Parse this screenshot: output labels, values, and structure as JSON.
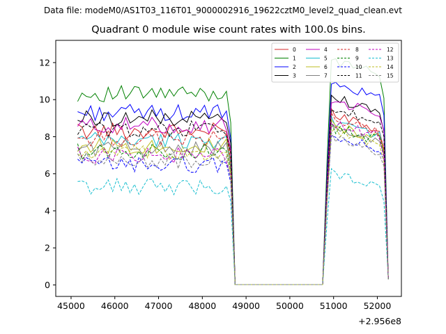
{
  "header": {
    "suptitle": "Data file: modeM0/AS1T03_116T01_9000002916_19622cztM0_level2_quad_clean.evt"
  },
  "chart_data": {
    "type": "line",
    "title": "Quadrant 0 module wise count rates with 100.0s bins.",
    "xlabel": "",
    "ylabel": "",
    "offset_text": "+2.956e8",
    "xlim": [
      44650,
      52550
    ],
    "ylim": [
      -0.62,
      13.2
    ],
    "xticks": [
      45000,
      46000,
      47000,
      48000,
      49000,
      50000,
      51000,
      52000
    ],
    "xtick_labels": [
      "45000",
      "46000",
      "47000",
      "48000",
      "49000",
      "50000",
      "51000",
      "52000"
    ],
    "yticks": [
      0,
      2,
      4,
      6,
      8,
      10,
      12
    ],
    "ytick_labels": [
      "0",
      "2",
      "4",
      "6",
      "8",
      "10",
      "12"
    ],
    "grid": false,
    "legend_position": "top-right",
    "segments": [
      {
        "start": 45150,
        "end": 48650,
        "step": 100
      },
      {
        "start": 48750,
        "end": 50750,
        "step": 100
      },
      {
        "start": 50850,
        "end": 52250,
        "step": 100
      }
    ],
    "series": [
      {
        "name": "0",
        "color": "#d62728",
        "dash": "solid",
        "level": 8.3,
        "level_b": 9.3,
        "low": 0.3
      },
      {
        "name": "1",
        "color": "#008000",
        "dash": "solid",
        "level": 10.3,
        "level_b": 12.2,
        "low": 0.3
      },
      {
        "name": "2",
        "color": "#0000ff",
        "dash": "solid",
        "level": 9.3,
        "level_b": 10.9,
        "low": 0.3
      },
      {
        "name": "3",
        "color": "#000000",
        "dash": "solid",
        "level": 9.0,
        "level_b": 10.2,
        "low": 0.3
      },
      {
        "name": "4",
        "color": "#bf00bf",
        "dash": "solid",
        "level": 8.6,
        "level_b": 10.0,
        "low": 0.3
      },
      {
        "name": "5",
        "color": "#17becf",
        "dash": "solid",
        "level": 7.8,
        "level_b": 8.9,
        "low": 0.3
      },
      {
        "name": "6",
        "color": "#bcbd22",
        "dash": "solid",
        "level": 7.5,
        "level_b": 8.7,
        "low": 0.3
      },
      {
        "name": "7",
        "color": "#808080",
        "dash": "solid",
        "level": 7.4,
        "level_b": 8.5,
        "low": 0.3
      },
      {
        "name": "8",
        "color": "#d62728",
        "dash": "dashed",
        "level": 7.9,
        "level_b": 9.1,
        "low": 0.3
      },
      {
        "name": "9",
        "color": "#008000",
        "dash": "dashed",
        "level": 7.2,
        "level_b": 8.6,
        "low": 0.3
      },
      {
        "name": "10",
        "color": "#0000ff",
        "dash": "dashed",
        "level": 6.5,
        "level_b": 8.2,
        "low": 0.3
      },
      {
        "name": "11",
        "color": "#000000",
        "dash": "dashed",
        "level": 8.4,
        "level_b": 9.6,
        "low": 0.3
      },
      {
        "name": "12",
        "color": "#bf00bf",
        "dash": "dashed",
        "level": 7.0,
        "level_b": 8.8,
        "low": 0.3
      },
      {
        "name": "13",
        "color": "#17becf",
        "dash": "dashed",
        "level": 5.3,
        "level_b": 6.2,
        "low": 0.3
      },
      {
        "name": "14",
        "color": "#bcbd22",
        "dash": "dashed",
        "level": 7.1,
        "level_b": 8.4,
        "low": 0.3
      },
      {
        "name": "15",
        "color": "#808080",
        "dash": "dashed",
        "level": 6.7,
        "level_b": 8.0,
        "low": 0.3
      }
    ]
  }
}
